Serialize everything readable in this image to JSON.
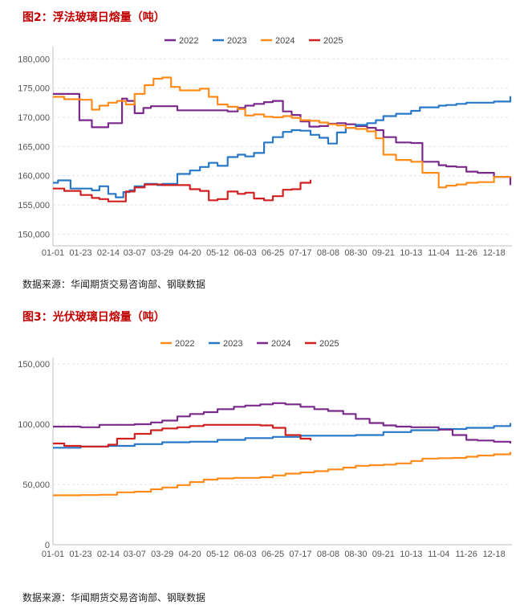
{
  "figures": [
    {
      "title": "图2：浮法玻璃日熔量（吨）",
      "source": "数据来源：华闻期货交易咨询部、钢联数据"
    },
    {
      "title": "图3：光伏玻璃日熔量（吨）",
      "source": "数据来源：华闻期货交易咨询部、钢联数据"
    }
  ],
  "chart_data": [
    {
      "type": "line",
      "title": "图2：浮法玻璃日熔量（吨）",
      "x_ticks": [
        "01-01",
        "01-23",
        "02-14",
        "03-07",
        "03-29",
        "04-20",
        "05-12",
        "06-03",
        "06-25",
        "07-17",
        "08-08",
        "08-30",
        "09-21",
        "10-13",
        "11-04",
        "11-26",
        "12-18"
      ],
      "y_ticks": [
        150000,
        155000,
        160000,
        165000,
        170000,
        175000,
        180000
      ],
      "y_tick_labels": [
        "150,000",
        "155,000",
        "160,000",
        "165,000",
        "170,000",
        "175,000",
        "180,000"
      ],
      "ylim": [
        148000,
        181000
      ],
      "legend_position": "top",
      "grid": "horizontal-dashed",
      "series": [
        {
          "name": "2022",
          "color": "#7a2a8a",
          "x": [
            "01-01",
            "01-15",
            "01-22",
            "02-01",
            "02-14",
            "02-25",
            "03-01",
            "03-07",
            "03-14",
            "03-20",
            "03-29",
            "04-10",
            "04-20",
            "05-01",
            "05-12",
            "05-20",
            "05-28",
            "06-03",
            "06-10",
            "06-18",
            "06-25",
            "07-03",
            "07-10",
            "07-17",
            "07-24",
            "08-01",
            "08-08",
            "08-15",
            "08-22",
            "08-30",
            "09-08",
            "09-15",
            "09-21",
            "10-01",
            "10-13",
            "10-22",
            "11-04",
            "11-10",
            "11-18",
            "11-26",
            "12-05",
            "12-18",
            "12-31"
          ],
          "y": [
            174000,
            174000,
            169500,
            168300,
            169000,
            173200,
            172800,
            170700,
            171600,
            171900,
            171900,
            171200,
            171200,
            171200,
            171200,
            171000,
            171600,
            172000,
            172300,
            172600,
            172800,
            171000,
            170400,
            169300,
            168400,
            168500,
            168900,
            169000,
            168800,
            168500,
            168200,
            167800,
            166600,
            165700,
            165600,
            162400,
            161800,
            161600,
            161500,
            160700,
            160500,
            159800,
            158400
          ]
        },
        {
          "name": "2023",
          "color": "#2878c8",
          "x": [
            "01-01",
            "01-05",
            "01-15",
            "01-23",
            "02-01",
            "02-07",
            "02-14",
            "02-20",
            "02-26",
            "03-03",
            "03-07",
            "03-15",
            "03-25",
            "03-29",
            "04-10",
            "04-20",
            "04-28",
            "05-05",
            "05-12",
            "05-20",
            "05-28",
            "06-03",
            "06-10",
            "06-18",
            "06-25",
            "07-03",
            "07-10",
            "07-17",
            "07-25",
            "08-01",
            "08-08",
            "08-15",
            "08-22",
            "08-30",
            "09-08",
            "09-15",
            "09-21",
            "10-01",
            "10-13",
            "10-20",
            "11-04",
            "11-10",
            "11-18",
            "11-26",
            "12-05",
            "12-18",
            "12-31"
          ],
          "y": [
            158800,
            159200,
            157800,
            157800,
            157500,
            158200,
            156900,
            156300,
            157200,
            157500,
            158200,
            158600,
            158400,
            158600,
            160300,
            160900,
            161500,
            162200,
            161700,
            163200,
            163600,
            163300,
            163900,
            165700,
            166600,
            167500,
            167800,
            167700,
            167000,
            166500,
            165500,
            167400,
            168200,
            168700,
            169000,
            169500,
            170200,
            170600,
            171100,
            171700,
            172000,
            172100,
            172300,
            172500,
            172500,
            172700,
            173600
          ]
        },
        {
          "name": "2024",
          "color": "#ff8c1a",
          "x": [
            "01-01",
            "01-10",
            "01-23",
            "02-01",
            "02-07",
            "02-14",
            "02-21",
            "02-28",
            "03-07",
            "03-15",
            "03-22",
            "03-29",
            "04-05",
            "04-12",
            "04-20",
            "04-28",
            "05-05",
            "05-12",
            "05-20",
            "05-28",
            "06-03",
            "06-10",
            "06-18",
            "06-25",
            "07-03",
            "07-10",
            "07-17",
            "07-25",
            "08-01",
            "08-08",
            "08-15",
            "08-22",
            "08-30",
            "09-08",
            "09-15",
            "09-21",
            "10-01",
            "10-13",
            "10-22",
            "11-04",
            "11-10",
            "11-18",
            "11-26",
            "12-05",
            "12-18",
            "12-31"
          ],
          "y": [
            173500,
            173100,
            173000,
            171300,
            172000,
            172500,
            172800,
            172200,
            174000,
            175500,
            176600,
            176800,
            175200,
            174600,
            174600,
            174900,
            173500,
            172200,
            171800,
            171400,
            170300,
            170500,
            170100,
            170000,
            170200,
            169900,
            169500,
            169400,
            169100,
            168800,
            168600,
            168200,
            168000,
            167600,
            166400,
            163600,
            162700,
            162400,
            160500,
            158000,
            158300,
            158500,
            158800,
            158900,
            159800,
            159700
          ]
        },
        {
          "name": "2025",
          "color": "#d02020",
          "x": [
            "01-01",
            "01-10",
            "01-23",
            "02-01",
            "02-07",
            "02-14",
            "02-21",
            "02-28",
            "03-07",
            "03-15",
            "03-22",
            "03-29",
            "04-05",
            "04-12",
            "04-20",
            "04-28",
            "05-05",
            "05-12",
            "05-20",
            "05-28",
            "06-03",
            "06-10",
            "06-18",
            "06-25",
            "07-03",
            "07-10",
            "07-17",
            "07-25"
          ],
          "y": [
            157800,
            157400,
            156700,
            156200,
            156000,
            155600,
            155600,
            157300,
            158000,
            158500,
            158500,
            158400,
            158400,
            158400,
            157700,
            157400,
            155800,
            156000,
            157300,
            156900,
            157100,
            156100,
            155800,
            156500,
            157600,
            157700,
            158800,
            159300
          ]
        }
      ]
    },
    {
      "type": "line",
      "title": "图3：光伏玻璃日熔量（吨）",
      "x_ticks": [
        "01-01",
        "01-23",
        "02-14",
        "03-07",
        "03-29",
        "04-20",
        "05-12",
        "06-03",
        "06-25",
        "07-17",
        "08-08",
        "08-30",
        "09-21",
        "10-13",
        "11-04",
        "11-26",
        "12-18"
      ],
      "y_ticks": [
        0,
        50000,
        100000,
        150000
      ],
      "y_tick_labels": [
        "0",
        "50,000",
        "100,000",
        "150,000"
      ],
      "ylim": [
        0,
        150000
      ],
      "legend_position": "top",
      "grid": "horizontal-dashed",
      "series": [
        {
          "name": "2022",
          "color": "#ff8c1a",
          "x": [
            "01-01",
            "01-23",
            "02-07",
            "02-21",
            "03-07",
            "03-20",
            "03-29",
            "04-10",
            "04-20",
            "05-01",
            "05-12",
            "05-25",
            "06-03",
            "06-15",
            "06-25",
            "07-05",
            "07-17",
            "07-28",
            "08-08",
            "08-20",
            "08-30",
            "09-10",
            "09-21",
            "10-01",
            "10-13",
            "10-22",
            "11-04",
            "11-15",
            "11-26",
            "12-05",
            "12-18",
            "12-31"
          ],
          "y": [
            41000,
            41200,
            41500,
            43500,
            44000,
            46000,
            47500,
            49500,
            52000,
            54000,
            55000,
            55500,
            55500,
            56000,
            57500,
            59000,
            60000,
            61000,
            62500,
            64000,
            65500,
            66000,
            66500,
            67500,
            69500,
            71500,
            71800,
            72000,
            73000,
            74000,
            75000,
            77000
          ]
        },
        {
          "name": "2023",
          "color": "#2878c8",
          "x": [
            "01-01",
            "01-23",
            "02-14",
            "03-07",
            "03-29",
            "04-20",
            "05-12",
            "06-03",
            "06-25",
            "07-17",
            "08-08",
            "08-30",
            "09-21",
            "10-13",
            "11-04",
            "11-26",
            "12-18",
            "12-31"
          ],
          "y": [
            80500,
            81500,
            82000,
            83500,
            85000,
            85500,
            87000,
            88500,
            89500,
            90500,
            90500,
            91000,
            93500,
            95000,
            96000,
            97000,
            98500,
            101000
          ]
        },
        {
          "name": "2024",
          "color": "#7a2a8a",
          "x": [
            "01-01",
            "01-23",
            "02-07",
            "02-21",
            "03-07",
            "03-20",
            "03-29",
            "04-10",
            "04-20",
            "05-01",
            "05-12",
            "05-25",
            "06-03",
            "06-15",
            "06-25",
            "07-05",
            "07-17",
            "07-28",
            "08-08",
            "08-20",
            "08-30",
            "09-10",
            "09-21",
            "10-01",
            "10-13",
            "10-22",
            "11-04",
            "11-15",
            "11-26",
            "12-05",
            "12-18",
            "12-31"
          ],
          "y": [
            98000,
            97500,
            99500,
            99500,
            100000,
            101500,
            103000,
            106500,
            108500,
            110000,
            112500,
            114500,
            115500,
            116500,
            117500,
            116500,
            114500,
            112500,
            111000,
            108500,
            104500,
            101000,
            99000,
            98000,
            97500,
            97500,
            95500,
            91000,
            87000,
            86500,
            85500,
            84000
          ]
        },
        {
          "name": "2025",
          "color": "#d02020",
          "x": [
            "01-01",
            "01-10",
            "01-23",
            "02-07",
            "02-14",
            "02-21",
            "03-07",
            "03-20",
            "03-29",
            "04-10",
            "04-20",
            "05-01",
            "05-12",
            "05-25",
            "06-03",
            "06-15",
            "06-25",
            "07-05",
            "07-17",
            "07-25"
          ],
          "y": [
            84000,
            82000,
            81500,
            81500,
            83000,
            88000,
            92000,
            95000,
            96500,
            97500,
            98500,
            99500,
            99500,
            99500,
            99500,
            99000,
            97000,
            91000,
            88000,
            86500
          ]
        }
      ]
    }
  ]
}
